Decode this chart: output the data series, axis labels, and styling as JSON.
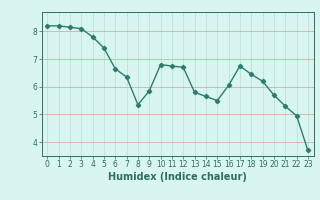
{
  "x": [
    0,
    1,
    2,
    3,
    4,
    5,
    6,
    7,
    8,
    9,
    10,
    11,
    12,
    13,
    14,
    15,
    16,
    17,
    18,
    19,
    20,
    21,
    22,
    23
  ],
  "y": [
    8.2,
    8.2,
    8.15,
    8.1,
    7.8,
    7.4,
    6.65,
    6.35,
    5.35,
    5.85,
    6.8,
    6.75,
    6.7,
    5.8,
    5.65,
    5.5,
    6.05,
    6.75,
    6.45,
    6.2,
    5.7,
    5.3,
    4.95,
    3.7
  ],
  "line_color": "#2d7d6e",
  "marker": "D",
  "marker_size": 2.2,
  "bg_color": "#d8f5f0",
  "grid_color": "#b8ddd8",
  "axis_color": "#2d6e65",
  "xlabel": "Humidex (Indice chaleur)",
  "xlim": [
    -0.5,
    23.5
  ],
  "ylim": [
    3.5,
    8.7
  ],
  "yticks": [
    4,
    5,
    6,
    7,
    8
  ],
  "xticks": [
    0,
    1,
    2,
    3,
    4,
    5,
    6,
    7,
    8,
    9,
    10,
    11,
    12,
    13,
    14,
    15,
    16,
    17,
    18,
    19,
    20,
    21,
    22,
    23
  ],
  "tick_label_fontsize": 5.5,
  "xlabel_fontsize": 7.0,
  "line_width": 1.0
}
